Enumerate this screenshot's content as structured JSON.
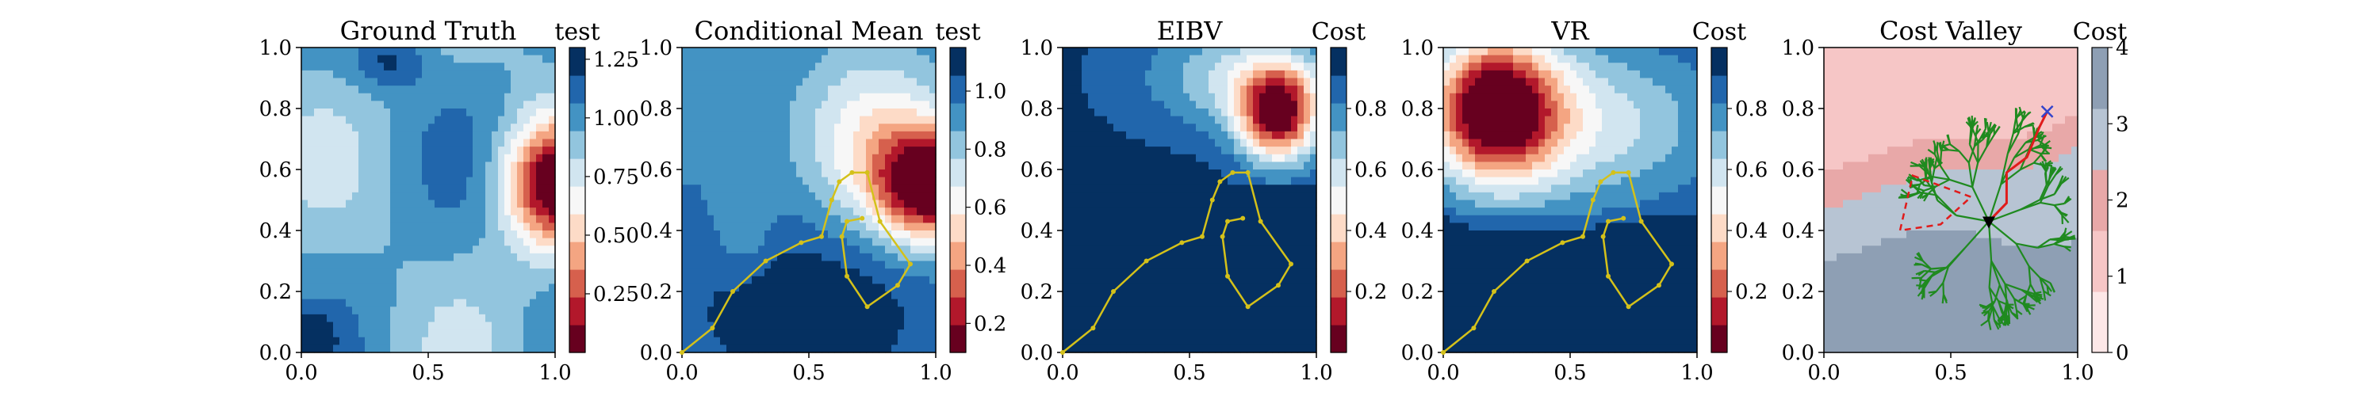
{
  "chart_data": [
    {
      "type": "heatmap",
      "title": "Ground Truth",
      "colorbar_label": "test",
      "xticks": [
        "0.0",
        "0.5",
        "1.0"
      ],
      "yticks": [
        "0.0",
        "0.2",
        "0.4",
        "0.6",
        "0.8",
        "1.0"
      ],
      "xlim": [
        0,
        1
      ],
      "ylim": [
        0,
        1
      ],
      "colorbar_ticks": [
        "0.25",
        "0.50",
        "0.75",
        "1.00",
        "1.25"
      ],
      "colorbar_range": [
        0.0,
        1.3
      ],
      "colormap": [
        "#67001f",
        "#b2182b",
        "#d6604d",
        "#f4a582",
        "#fddbc7",
        "#f7f7f7",
        "#d1e5f0",
        "#92c5de",
        "#4393c3",
        "#2166ac",
        "#053061"
      ],
      "has_path": false
    },
    {
      "type": "heatmap",
      "title": "Conditional Mean",
      "colorbar_label": "test",
      "xticks": [
        "0.0",
        "0.5",
        "1.0"
      ],
      "yticks": [
        "0.0",
        "0.2",
        "0.4",
        "0.6",
        "0.8",
        "1.0"
      ],
      "xlim": [
        0,
        1
      ],
      "ylim": [
        0,
        1
      ],
      "colorbar_ticks": [
        "0.2",
        "0.4",
        "0.6",
        "0.8",
        "1.0"
      ],
      "colorbar_range": [
        0.1,
        1.15
      ],
      "colormap": [
        "#67001f",
        "#b2182b",
        "#d6604d",
        "#f4a582",
        "#fddbc7",
        "#f7f7f7",
        "#d1e5f0",
        "#92c5de",
        "#4393c3",
        "#2166ac",
        "#053061"
      ],
      "has_path": true
    },
    {
      "type": "heatmap",
      "title": "EIBV",
      "colorbar_label": "Cost",
      "xticks": [
        "0.0",
        "0.5",
        "1.0"
      ],
      "yticks": [
        "0.0",
        "0.2",
        "0.4",
        "0.6",
        "0.8",
        "1.0"
      ],
      "xlim": [
        0,
        1
      ],
      "ylim": [
        0,
        1
      ],
      "colorbar_ticks": [
        "0.2",
        "0.4",
        "0.6",
        "0.8"
      ],
      "colorbar_range": [
        0.0,
        1.0
      ],
      "colormap": [
        "#67001f",
        "#b2182b",
        "#d6604d",
        "#f4a582",
        "#fddbc7",
        "#f7f7f7",
        "#d1e5f0",
        "#92c5de",
        "#4393c3",
        "#2166ac",
        "#053061"
      ],
      "has_path": true
    },
    {
      "type": "heatmap",
      "title": "VR",
      "colorbar_label": "Cost",
      "xticks": [
        "0.0",
        "0.5",
        "1.0"
      ],
      "yticks": [
        "0.0",
        "0.2",
        "0.4",
        "0.6",
        "0.8",
        "1.0"
      ],
      "xlim": [
        0,
        1
      ],
      "ylim": [
        0,
        1
      ],
      "colorbar_ticks": [
        "0.2",
        "0.4",
        "0.6",
        "0.8"
      ],
      "colorbar_range": [
        0.0,
        1.0
      ],
      "colormap": [
        "#67001f",
        "#b2182b",
        "#d6604d",
        "#f4a582",
        "#fddbc7",
        "#f7f7f7",
        "#d1e5f0",
        "#92c5de",
        "#4393c3",
        "#2166ac",
        "#053061"
      ],
      "has_path": true
    },
    {
      "type": "heatmap",
      "title": "Cost Valley",
      "colorbar_label": "Cost",
      "xticks": [
        "0.0",
        "0.5",
        "1.0"
      ],
      "yticks": [
        "0.0",
        "0.2",
        "0.4",
        "0.6",
        "0.8",
        "1.0"
      ],
      "xlim": [
        0,
        1
      ],
      "ylim": [
        0,
        1
      ],
      "colorbar_ticks": [
        "0",
        "1",
        "2",
        "3",
        "4"
      ],
      "colorbar_range": [
        0,
        4
      ],
      "colormap": [
        "#fde7e7",
        "#f6c6c6",
        "#e8a8a8",
        "#b7c4d3",
        "#8e9fb4"
      ],
      "has_path": false,
      "tree": true
    }
  ],
  "path": {
    "color": "#d4c11a",
    "points": [
      [
        0.0,
        0.0
      ],
      [
        0.12,
        0.08
      ],
      [
        0.2,
        0.2
      ],
      [
        0.33,
        0.3
      ],
      [
        0.47,
        0.36
      ],
      [
        0.55,
        0.38
      ],
      [
        0.59,
        0.5
      ],
      [
        0.62,
        0.56
      ],
      [
        0.67,
        0.59
      ],
      [
        0.73,
        0.59
      ],
      [
        0.78,
        0.43
      ],
      [
        0.9,
        0.29
      ],
      [
        0.85,
        0.22
      ],
      [
        0.73,
        0.15
      ],
      [
        0.65,
        0.25
      ],
      [
        0.63,
        0.38
      ],
      [
        0.65,
        0.43
      ],
      [
        0.71,
        0.44
      ]
    ]
  },
  "cost_valley": {
    "tree_color": "#1f8a1f",
    "route_color": "#e01b1b",
    "start_marker": [
      0.65,
      0.43
    ],
    "goal_marker": [
      0.88,
      0.79
    ],
    "route": [
      [
        0.65,
        0.43
      ],
      [
        0.72,
        0.49
      ],
      [
        0.72,
        0.59
      ],
      [
        0.8,
        0.64
      ],
      [
        0.85,
        0.74
      ],
      [
        0.88,
        0.79
      ]
    ],
    "dashed_polygon": [
      [
        0.35,
        0.58
      ],
      [
        0.58,
        0.51
      ],
      [
        0.46,
        0.42
      ],
      [
        0.3,
        0.4
      ]
    ]
  }
}
